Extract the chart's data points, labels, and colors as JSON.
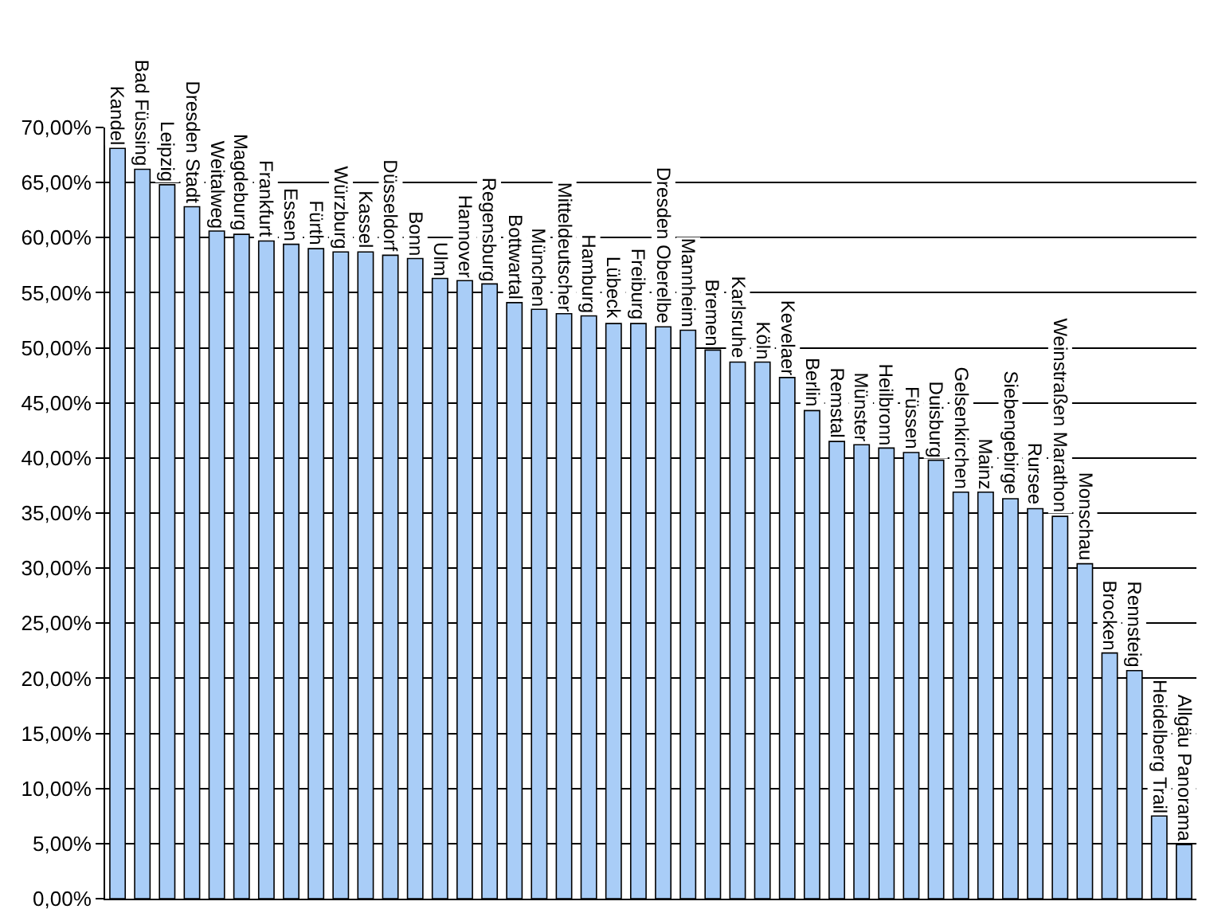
{
  "chart_data": {
    "type": "bar",
    "categories": [
      "Kandel",
      "Bad Füssing",
      "Leipzig",
      "Dresden Stadt",
      "Weitalweg",
      "Magdeburg",
      "Frankfurt",
      "Essen",
      "Fürth",
      "Würzburg",
      "Kassel",
      "Düsseldorf",
      "Bonn",
      "Ulm",
      "Hannover",
      "Regensburg",
      "Bottwartal",
      "München",
      "Mitteldeutscher",
      "Hamburg",
      "Lübeck",
      "Freiburg",
      "Dresden Oberelbe",
      "Mannheim",
      "Bremen",
      "Karlsruhe",
      "Köln",
      "Kevelaer",
      "Berlin",
      "Remstal",
      "Münster",
      "Heilbronn",
      "Füssen",
      "Duisburg",
      "Gelsenkirchen",
      "Mainz",
      "Siebengebirge",
      "Rursee",
      "Weinstraßen Marathon",
      "Monschau",
      "Brocken",
      "Rennsteig",
      "Heidelberg Trail",
      "Allgäu Panorama"
    ],
    "values": [
      68.1,
      66.2,
      64.8,
      62.8,
      60.6,
      60.3,
      59.7,
      59.4,
      59.0,
      58.7,
      58.7,
      58.4,
      58.1,
      56.3,
      56.1,
      55.8,
      54.1,
      53.5,
      53.1,
      52.9,
      52.2,
      52.2,
      51.9,
      51.6,
      49.8,
      48.7,
      48.7,
      47.3,
      44.3,
      41.5,
      41.2,
      40.9,
      40.5,
      39.8,
      36.9,
      36.9,
      36.3,
      35.4,
      34.7,
      30.4,
      22.3,
      20.7,
      7.5,
      4.9
    ],
    "color": "#a9cdf7",
    "ylim": [
      0,
      70
    ],
    "yticks": [
      {
        "value": 0,
        "label": "0,00%"
      },
      {
        "value": 5,
        "label": "5,00%"
      },
      {
        "value": 10,
        "label": "10,00%"
      },
      {
        "value": 15,
        "label": "15,00%"
      },
      {
        "value": 20,
        "label": "20,00%"
      },
      {
        "value": 25,
        "label": "25,00%"
      },
      {
        "value": 30,
        "label": "30,00%"
      },
      {
        "value": 35,
        "label": "35,00%"
      },
      {
        "value": 40,
        "label": "40,00%"
      },
      {
        "value": 45,
        "label": "45,00%"
      },
      {
        "value": 50,
        "label": "50,00%"
      },
      {
        "value": 55,
        "label": "55,00%"
      },
      {
        "value": 60,
        "label": "60,00%"
      },
      {
        "value": 65,
        "label": "65,00%"
      },
      {
        "value": 70,
        "label": "70,00%"
      }
    ],
    "grid": "y",
    "legend": false
  }
}
